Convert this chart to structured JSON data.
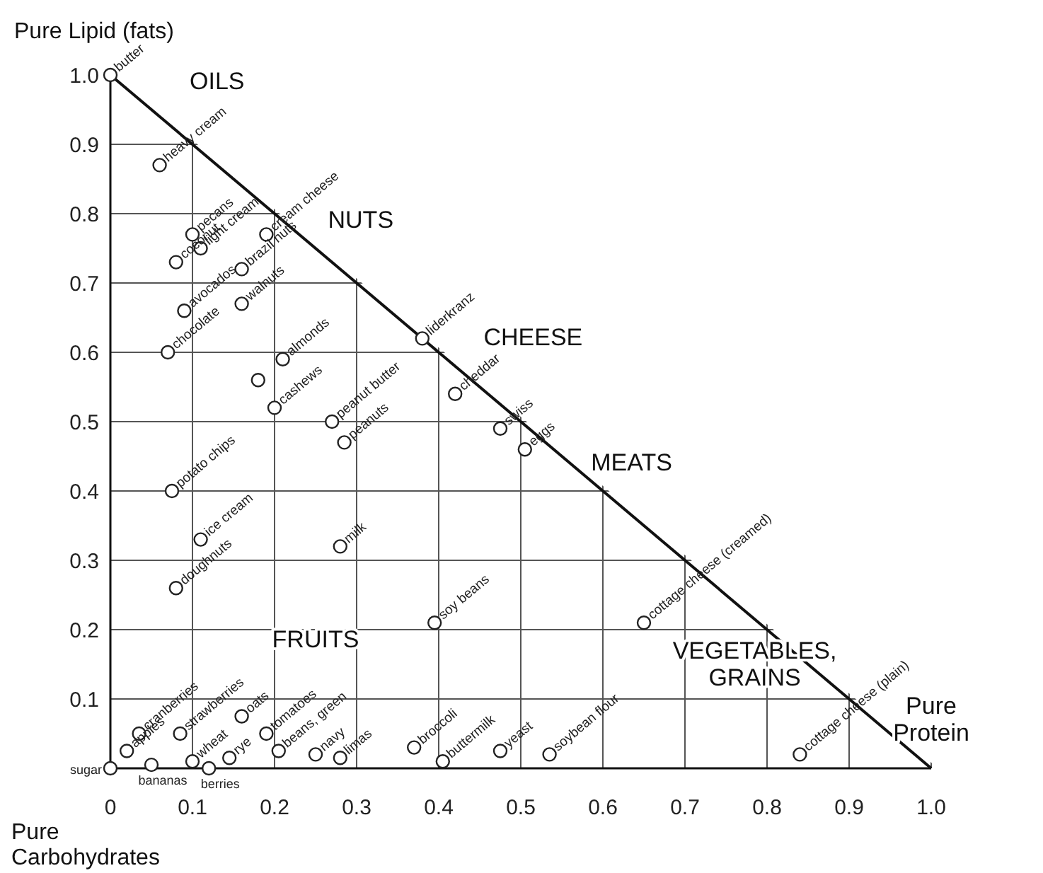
{
  "chart_data": {
    "type": "scatter",
    "ylabel": "Pure Lipid (fats)",
    "xlabel": "Pure Carbohydrates",
    "xlim": [
      0,
      1
    ],
    "ylim": [
      0,
      1
    ],
    "xticks": [
      0,
      0.1,
      0.2,
      0.3,
      0.4,
      0.5,
      0.6,
      0.7,
      0.8,
      0.9,
      {
        "value": 1,
        "label": "1.0"
      }
    ],
    "yticks": [
      0.1,
      0.2,
      0.3,
      0.4,
      0.5,
      0.6,
      0.7,
      0.8,
      0.9,
      {
        "value": 1,
        "label": "1.0"
      }
    ],
    "grid": true,
    "legend": false,
    "marker": "circle",
    "series": [
      {
        "type": "line",
        "color": "#111111",
        "marker": "none",
        "x": [
          0,
          1
        ],
        "values": [
          1,
          0
        ]
      },
      {
        "type": "scatter",
        "color": "#222222",
        "x": [
          0,
          0.06,
          0.1,
          0.11,
          0.08,
          0.19,
          0.16,
          0.09,
          0.16,
          0.07,
          0.21,
          0.38,
          0.18,
          0.2,
          0.27,
          0.285,
          0.42,
          0.475,
          0.505,
          0.28,
          0.075,
          0.11,
          0.08,
          0.395,
          0.035,
          0.02,
          0.05,
          0.085,
          0.1,
          0.12,
          0.145,
          0.16,
          0.19,
          0.205,
          0.25,
          0.28,
          0.37,
          0.405,
          0.475,
          0.535,
          0.65,
          0.84,
          0
        ],
        "values": [
          1,
          0.87,
          0.77,
          0.75,
          0.73,
          0.77,
          0.72,
          0.66,
          0.67,
          0.6,
          0.59,
          0.62,
          0.56,
          0.52,
          0.5,
          0.47,
          0.54,
          0.49,
          0.46,
          0.32,
          0.4,
          0.33,
          0.26,
          0.21,
          0.05,
          0.025,
          0.005,
          0.05,
          0.01,
          0,
          0.015,
          0.075,
          0.05,
          0.025,
          0.02,
          0.015,
          0.03,
          0.01,
          0.025,
          0.02,
          0.21,
          0.02,
          0
        ],
        "value_labels": [
          "butter",
          "heavy cream",
          "pecans",
          "light cream",
          "coconut",
          "cream cheese",
          "brazil nuts",
          "avocados",
          "walnuts",
          "chocolate",
          "almonds",
          "liderkranz",
          null,
          "cashews",
          "peanut butter",
          "peanuts",
          "cheddar",
          "swiss",
          "eggs",
          "milk",
          "potato chips",
          "ice cream",
          "doughnuts",
          "soy beans",
          "cranberries",
          "apples",
          "bananas",
          "strawberries",
          "wheat",
          "berries",
          "rye",
          "oats",
          "tomatoes",
          "beans, green",
          "navy",
          "limas",
          "broccoli",
          "buttermilk",
          "yeast",
          "soybean flour",
          "cottage cheese (creamed)",
          "cottage cheese (plain)",
          "sugar"
        ]
      }
    ],
    "annotations": [
      "OILS",
      "NUTS",
      "CHEESE",
      "MEATS",
      "FRUITS",
      "VEGETABLES, GRAINS",
      "Pure Protein"
    ]
  }
}
